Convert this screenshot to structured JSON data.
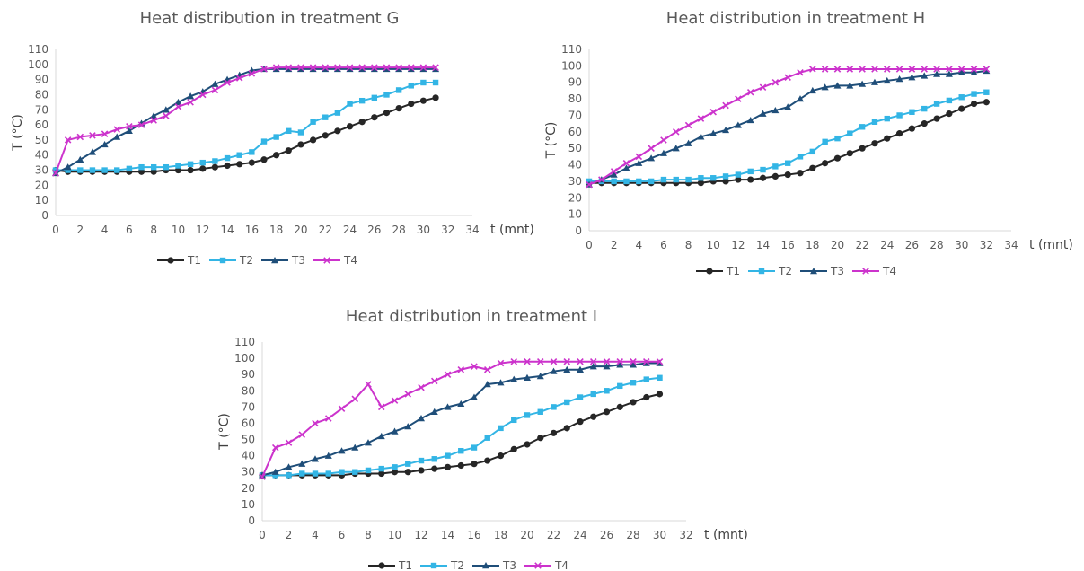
{
  "chart_data": [
    {
      "id": "g",
      "type": "line",
      "title": "Heat distribution in treatment G",
      "xlabel": "t (mnt)",
      "ylabel": "T (°C)",
      "xlim": [
        0,
        34
      ],
      "ylim": [
        0,
        110
      ],
      "xticks": [
        0,
        2,
        4,
        6,
        8,
        10,
        12,
        14,
        16,
        18,
        20,
        22,
        24,
        26,
        28,
        30,
        32,
        34
      ],
      "yticks": [
        0,
        10,
        20,
        30,
        40,
        50,
        60,
        70,
        80,
        90,
        100,
        110
      ],
      "grid": false,
      "legend": "bottom",
      "x": [
        0,
        1,
        2,
        3,
        4,
        5,
        6,
        7,
        8,
        9,
        10,
        11,
        12,
        13,
        14,
        15,
        16,
        17,
        18,
        19,
        20,
        21,
        22,
        23,
        24,
        25,
        26,
        27,
        28,
        29,
        30,
        31
      ],
      "series": [
        {
          "name": "T1",
          "color": "#262626",
          "marker": "circle",
          "values": [
            30,
            29,
            29,
            29,
            29,
            29,
            29,
            29,
            29,
            30,
            30,
            30,
            31,
            32,
            33,
            34,
            35,
            37,
            40,
            43,
            47,
            50,
            53,
            56,
            59,
            62,
            65,
            68,
            71,
            74,
            76,
            78
          ]
        },
        {
          "name": "T2",
          "color": "#33b5e5",
          "marker": "square",
          "values": [
            30,
            30,
            30,
            30,
            30,
            30,
            31,
            32,
            32,
            32,
            33,
            34,
            35,
            36,
            38,
            40,
            42,
            49,
            52,
            56,
            55,
            62,
            65,
            68,
            74,
            76,
            78,
            80,
            83,
            86,
            88,
            88
          ]
        },
        {
          "name": "T3",
          "color": "#1f4e79",
          "marker": "triangle",
          "values": [
            28,
            32,
            37,
            42,
            47,
            52,
            56,
            61,
            66,
            70,
            75,
            79,
            82,
            87,
            90,
            93,
            96,
            97,
            97,
            97,
            97,
            97,
            97,
            97,
            97,
            97,
            97,
            97,
            97,
            97,
            97,
            97
          ]
        },
        {
          "name": "T4",
          "color": "#cc33cc",
          "marker": "x",
          "values": [
            28,
            50,
            52,
            53,
            54,
            57,
            59,
            60,
            63,
            66,
            72,
            75,
            80,
            83,
            88,
            91,
            94,
            97,
            98,
            98,
            98,
            98,
            98,
            98,
            98,
            98,
            98,
            98,
            98,
            98,
            98,
            98
          ]
        }
      ]
    },
    {
      "id": "h",
      "type": "line",
      "title": "Heat distribution in treatment H",
      "xlabel": "t (mnt)",
      "ylabel": "T (°C)",
      "xlim": [
        0,
        34
      ],
      "ylim": [
        0,
        110
      ],
      "xticks": [
        0,
        2,
        4,
        6,
        8,
        10,
        12,
        14,
        16,
        18,
        20,
        22,
        24,
        26,
        28,
        30,
        32,
        34
      ],
      "yticks": [
        0,
        10,
        20,
        30,
        40,
        50,
        60,
        70,
        80,
        90,
        100,
        110
      ],
      "grid": false,
      "legend": "bottom",
      "x": [
        0,
        1,
        2,
        3,
        4,
        5,
        6,
        7,
        8,
        9,
        10,
        11,
        12,
        13,
        14,
        15,
        16,
        17,
        18,
        19,
        20,
        21,
        22,
        23,
        24,
        25,
        26,
        27,
        28,
        29,
        30,
        31,
        32
      ],
      "series": [
        {
          "name": "T1",
          "color": "#262626",
          "marker": "circle",
          "values": [
            29,
            29,
            29,
            29,
            29,
            29,
            29,
            29,
            29,
            29,
            30,
            30,
            31,
            31,
            32,
            33,
            34,
            35,
            38,
            41,
            44,
            47,
            50,
            53,
            56,
            59,
            62,
            65,
            68,
            71,
            74,
            77,
            78
          ]
        },
        {
          "name": "T2",
          "color": "#33b5e5",
          "marker": "square",
          "values": [
            30,
            30,
            30,
            30,
            30,
            30,
            31,
            31,
            31,
            32,
            32,
            33,
            34,
            36,
            37,
            39,
            41,
            45,
            48,
            54,
            56,
            59,
            63,
            66,
            68,
            70,
            72,
            74,
            77,
            79,
            81,
            83,
            84
          ]
        },
        {
          "name": "T3",
          "color": "#1f4e79",
          "marker": "triangle",
          "values": [
            28,
            31,
            34,
            38,
            41,
            44,
            47,
            50,
            53,
            57,
            59,
            61,
            64,
            67,
            71,
            73,
            75,
            80,
            85,
            87,
            88,
            88,
            89,
            90,
            91,
            92,
            93,
            94,
            95,
            95,
            96,
            96,
            97
          ]
        },
        {
          "name": "T4",
          "color": "#cc33cc",
          "marker": "x",
          "values": [
            28,
            31,
            36,
            41,
            45,
            50,
            55,
            60,
            64,
            68,
            72,
            76,
            80,
            84,
            87,
            90,
            93,
            96,
            98,
            98,
            98,
            98,
            98,
            98,
            98,
            98,
            98,
            98,
            98,
            98,
            98,
            98,
            98
          ]
        }
      ]
    },
    {
      "id": "i",
      "type": "line",
      "title": "Heat distribution in treatment I",
      "xlabel": "t (mnt)",
      "ylabel": "T (°C)",
      "xlim": [
        0,
        32
      ],
      "ylim": [
        0,
        110
      ],
      "xticks": [
        0,
        2,
        4,
        6,
        8,
        10,
        12,
        14,
        16,
        18,
        20,
        22,
        24,
        26,
        28,
        30,
        32
      ],
      "yticks": [
        0,
        10,
        20,
        30,
        40,
        50,
        60,
        70,
        80,
        90,
        100,
        110
      ],
      "grid": false,
      "legend": "bottom",
      "x": [
        0,
        1,
        2,
        3,
        4,
        5,
        6,
        7,
        8,
        9,
        10,
        11,
        12,
        13,
        14,
        15,
        16,
        17,
        18,
        19,
        20,
        21,
        22,
        23,
        24,
        25,
        26,
        27,
        28,
        29,
        30
      ],
      "series": [
        {
          "name": "T1",
          "color": "#262626",
          "marker": "circle",
          "values": [
            28,
            28,
            28,
            28,
            28,
            28,
            28,
            29,
            29,
            29,
            30,
            30,
            31,
            32,
            33,
            34,
            35,
            37,
            40,
            44,
            47,
            51,
            54,
            57,
            61,
            64,
            67,
            70,
            73,
            76,
            78
          ]
        },
        {
          "name": "T2",
          "color": "#33b5e5",
          "marker": "square",
          "values": [
            28,
            28,
            28,
            29,
            29,
            29,
            30,
            30,
            31,
            32,
            33,
            35,
            37,
            38,
            40,
            43,
            45,
            51,
            57,
            62,
            65,
            67,
            70,
            73,
            76,
            78,
            80,
            83,
            85,
            87,
            88
          ]
        },
        {
          "name": "T3",
          "color": "#1f4e79",
          "marker": "triangle",
          "values": [
            28,
            30,
            33,
            35,
            38,
            40,
            43,
            45,
            48,
            52,
            55,
            58,
            63,
            67,
            70,
            72,
            76,
            84,
            85,
            87,
            88,
            89,
            92,
            93,
            93,
            95,
            95,
            96,
            96,
            97,
            97
          ]
        },
        {
          "name": "T4",
          "color": "#cc33cc",
          "marker": "x",
          "values": [
            27,
            45,
            48,
            53,
            60,
            63,
            69,
            75,
            84,
            70,
            74,
            78,
            82,
            86,
            90,
            93,
            95,
            93,
            97,
            98,
            98,
            98,
            98,
            98,
            98,
            98,
            98,
            98,
            98,
            98,
            98
          ]
        }
      ]
    }
  ]
}
